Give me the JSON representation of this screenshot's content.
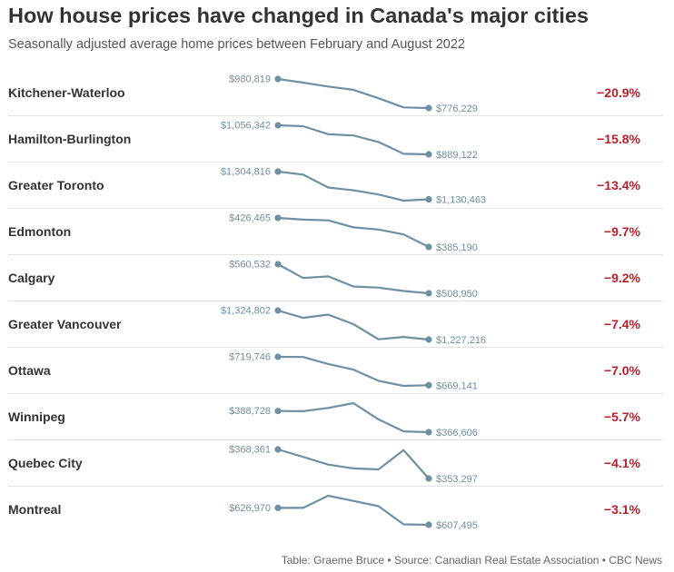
{
  "title": "How house prices have changed in Canada's major cities",
  "subtitle": "Seasonally adjusted average home prices between February and August 2022",
  "footer": "Table: Graeme Bruce • Source: Canadian Real Estate Association • CBC News",
  "colors": {
    "line": "#6f8fa3",
    "negative": "#b5222d",
    "text": "#333333",
    "muted": "#555555"
  },
  "chart_data": {
    "type": "line",
    "title": "How house prices have changed in Canada's major cities",
    "subtitle": "Seasonally adjusted average home prices between February and August 2022",
    "grid": false,
    "legend": "none",
    "series": [
      {
        "name": "Kitchener-Waterloo",
        "start_label": "$980,819",
        "end_label": "$776,229",
        "change": "−20.9%",
        "values": [
          980819,
          955000,
          928000,
          905000,
          845000,
          781000,
          776229
        ]
      },
      {
        "name": "Hamilton-Burlington",
        "start_label": "$1,056,342",
        "end_label": "$889,122",
        "change": "−15.8%",
        "values": [
          1056342,
          1051000,
          1005000,
          998000,
          960000,
          892000,
          889122
        ]
      },
      {
        "name": "Greater Toronto",
        "start_label": "$1,304,816",
        "end_label": "$1,130,463",
        "change": "−13.4%",
        "values": [
          1304816,
          1286000,
          1205000,
          1187000,
          1161000,
          1122000,
          1130463
        ]
      },
      {
        "name": "Edmonton",
        "start_label": "$426,465",
        "end_label": "$385,190",
        "change": "−9.7%",
        "values": [
          426465,
          424000,
          423000,
          413000,
          410000,
          403000,
          385190
        ]
      },
      {
        "name": "Calgary",
        "start_label": "$560,532",
        "end_label": "$508,950",
        "change": "−9.2%",
        "values": [
          560532,
          536000,
          539000,
          521000,
          519000,
          513000,
          508950
        ]
      },
      {
        "name": "Greater Vancouver",
        "start_label": "$1,324,802",
        "end_label": "$1,227,216",
        "change": "−7.4%",
        "values": [
          1324802,
          1300000,
          1311000,
          1279000,
          1228000,
          1236000,
          1227216
        ]
      },
      {
        "name": "Ottawa",
        "start_label": "$719,746",
        "end_label": "$669,141",
        "change": "−7.0%",
        "values": [
          719746,
          719500,
          707000,
          697000,
          677000,
          668000,
          669141
        ]
      },
      {
        "name": "Winnipeg",
        "start_label": "$388,728",
        "end_label": "$366,606",
        "change": "−5.7%",
        "values": [
          388728,
          388500,
          392000,
          397000,
          380000,
          367500,
          366606
        ]
      },
      {
        "name": "Quebec City",
        "start_label": "$368,361",
        "end_label": "$353,297",
        "change": "−4.1%",
        "values": [
          368361,
          364500,
          360500,
          358500,
          358000,
          368000,
          353297
        ]
      },
      {
        "name": "Montreal",
        "start_label": "$626,970",
        "end_label": "$607,495",
        "change": "−3.1%",
        "values": [
          626970,
          627000,
          641000,
          635000,
          629000,
          608000,
          607495
        ]
      }
    ]
  }
}
